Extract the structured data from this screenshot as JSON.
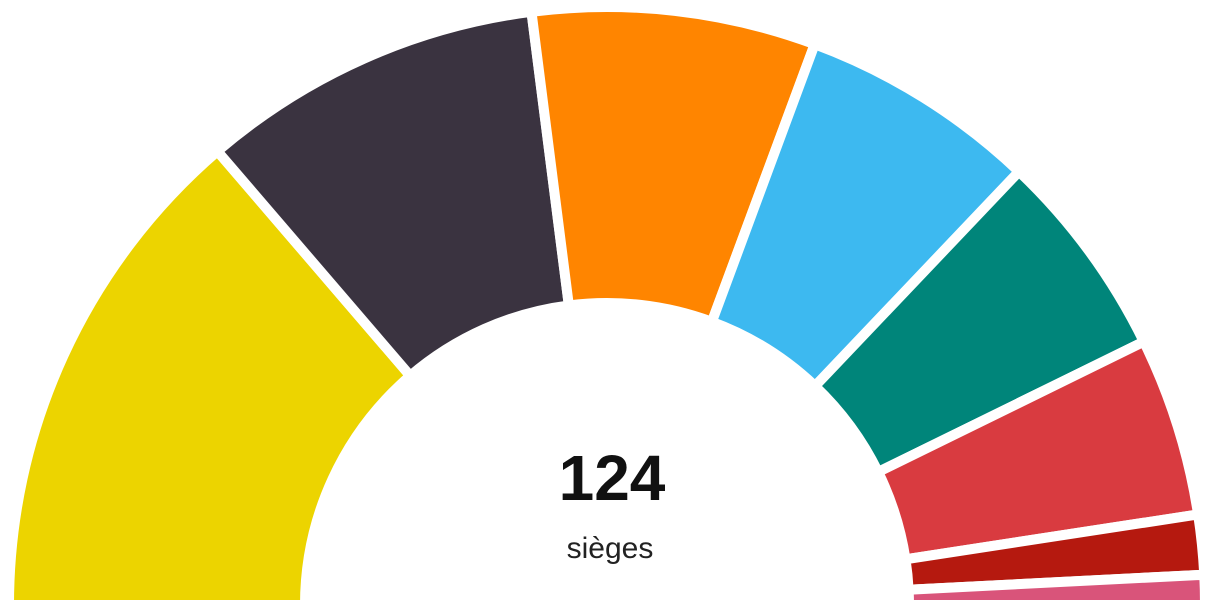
{
  "chart_data": {
    "type": "parliament",
    "total": 124,
    "total_label": "sièges",
    "values": [
      34,
      23,
      19,
      16,
      14,
      12,
      4,
      2
    ],
    "colors": [
      "#ecd400",
      "#3a3340",
      "#ff8500",
      "#3db9f0",
      "#00857a",
      "#d93b40",
      "#b5190f",
      "#d9547a"
    ]
  }
}
